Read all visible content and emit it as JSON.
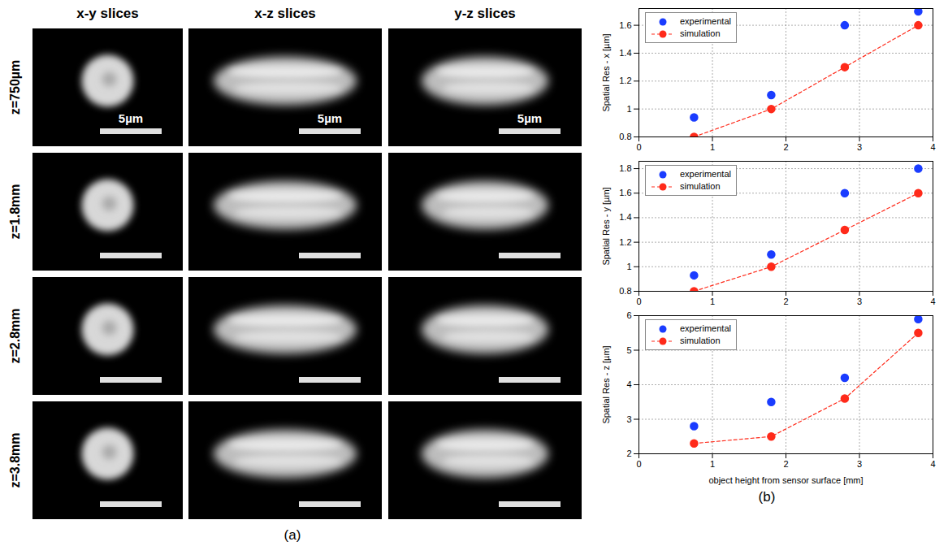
{
  "panel_a": {
    "label": "(a)",
    "column_heads": [
      "x-y slices",
      "x-z slices",
      "y-z slices"
    ],
    "row_heads": [
      "z=750µm",
      "z=1.8mm",
      "z=2.8mm",
      "z=3.8mm"
    ],
    "scale_bar": "5µm"
  },
  "panel_b": {
    "label": "(b)"
  },
  "chart_data": [
    {
      "type": "scatter",
      "ylabel": "Spatial Res - x [µm]",
      "x": [
        0.75,
        1.8,
        2.8,
        3.8
      ],
      "series": [
        {
          "name": "experimental",
          "type": "scatter",
          "marker": "circle",
          "color": "#1a3cff",
          "values": [
            0.94,
            1.1,
            1.6,
            1.7
          ]
        },
        {
          "name": "simulation",
          "type": "line",
          "marker": "circle",
          "line_style": "dashed",
          "color": "#ff2a1a",
          "values": [
            0.8,
            1.0,
            1.3,
            1.6
          ]
        }
      ],
      "xlim": [
        0,
        4
      ],
      "xticks": [
        0,
        1,
        2,
        3,
        4
      ],
      "ylim": [
        0.8,
        1.72
      ],
      "yticks": [
        0.8,
        1,
        1.2,
        1.4,
        1.6
      ],
      "grid": true,
      "legend": "top-left"
    },
    {
      "type": "scatter",
      "ylabel": "Spatial Res - y [µm]",
      "x": [
        0.75,
        1.8,
        2.8,
        3.8
      ],
      "series": [
        {
          "name": "experimental",
          "type": "scatter",
          "marker": "circle",
          "color": "#1a3cff",
          "values": [
            0.93,
            1.1,
            1.6,
            1.8
          ]
        },
        {
          "name": "simulation",
          "type": "line",
          "marker": "circle",
          "line_style": "dashed",
          "color": "#ff2a1a",
          "values": [
            0.8,
            1.0,
            1.3,
            1.6
          ]
        }
      ],
      "xlim": [
        0,
        4
      ],
      "xticks": [
        0,
        1,
        2,
        3,
        4
      ],
      "ylim": [
        0.8,
        1.86
      ],
      "yticks": [
        0.8,
        1,
        1.2,
        1.4,
        1.6,
        1.8
      ],
      "grid": true,
      "legend": "top-left"
    },
    {
      "type": "scatter",
      "ylabel": "Spatial Res - z [µm]",
      "xlabel": "object height from sensor surface [mm]",
      "x": [
        0.75,
        1.8,
        2.8,
        3.8
      ],
      "series": [
        {
          "name": "experimental",
          "type": "scatter",
          "marker": "circle",
          "color": "#1a3cff",
          "values": [
            2.8,
            3.5,
            4.2,
            5.9
          ]
        },
        {
          "name": "simulation",
          "type": "line",
          "marker": "circle",
          "line_style": "dashed",
          "color": "#ff2a1a",
          "values": [
            2.3,
            2.5,
            3.6,
            5.5
          ]
        }
      ],
      "xlim": [
        0,
        4
      ],
      "xticks": [
        0,
        1,
        2,
        3,
        4
      ],
      "ylim": [
        2,
        6
      ],
      "yticks": [
        2,
        3,
        4,
        5,
        6
      ],
      "grid": true,
      "legend": "top-left"
    }
  ]
}
